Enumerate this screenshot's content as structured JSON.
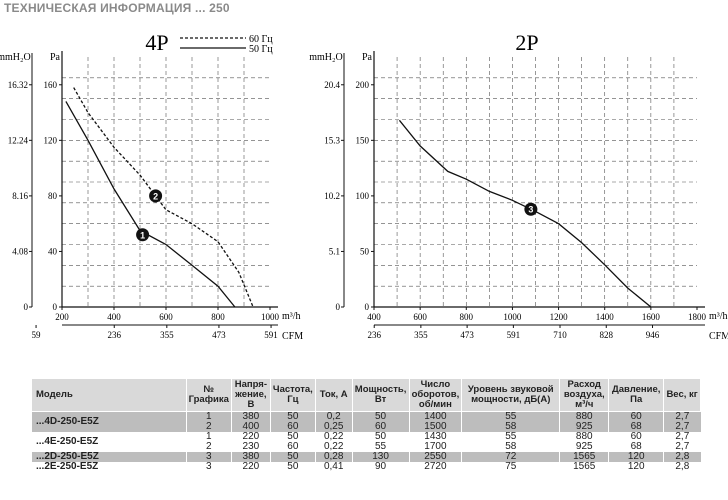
{
  "header": {
    "title": "ТЕХНИЧЕСКАЯ ИНФОРМАЦИЯ  ... 250"
  },
  "chart_data": [
    {
      "type": "line",
      "title": "4P",
      "xlabel": "m³/h",
      "xlabel2": "CFM",
      "ylabel_left": "mmH₂O",
      "ylabel": "Pa",
      "xlim": [
        200,
        1000
      ],
      "ylim": [
        0,
        180
      ],
      "x_ticks": [
        "200",
        "400",
        "600",
        "800",
        "1000"
      ],
      "cfm_ticks": [
        "59",
        "236",
        "355",
        "473",
        "591"
      ],
      "y_ticks": [
        "0",
        "40",
        "80",
        "120",
        "160"
      ],
      "mm_ticks": [
        "0",
        "4.08",
        "8.16",
        "12.24",
        "16.32"
      ],
      "grid": true,
      "legend": "top-center",
      "series": [
        {
          "name": "60 Гц",
          "style": "dashed",
          "marker": "2",
          "marker_x": 560,
          "marker_y": 80,
          "x": [
            245,
            300,
            400,
            500,
            600,
            700,
            800,
            880,
            935
          ],
          "y": [
            158,
            140,
            115,
            95,
            70,
            60,
            47,
            25,
            0
          ]
        },
        {
          "name": "50 Гц",
          "style": "solid",
          "marker": "1",
          "marker_x": 510,
          "marker_y": 52,
          "x": [
            215,
            300,
            400,
            500,
            600,
            700,
            800,
            865
          ],
          "y": [
            148,
            120,
            85,
            55,
            45,
            30,
            15,
            0
          ]
        }
      ]
    },
    {
      "type": "line",
      "title": "2P",
      "xlabel": "m³/h",
      "xlabel2": "CFM",
      "ylabel_left": "mmH₂O",
      "ylabel": "Pa",
      "xlim": [
        400,
        1800
      ],
      "ylim": [
        0,
        225
      ],
      "x_ticks": [
        "400",
        "600",
        "800",
        "1000",
        "1200",
        "1400",
        "1600",
        "1800"
      ],
      "cfm_ticks": [
        "236",
        "355",
        "473",
        "591",
        "710",
        "828",
        "946"
      ],
      "y_ticks": [
        "0",
        "50",
        "100",
        "150",
        "200"
      ],
      "mm_ticks": [
        "0",
        "5.1",
        "10.2",
        "15.3",
        "20.4"
      ],
      "grid": true,
      "series": [
        {
          "name": "",
          "style": "solid",
          "marker": "3",
          "marker_x": 1080,
          "marker_y": 88,
          "x": [
            510,
            600,
            720,
            800,
            900,
            1000,
            1100,
            1200,
            1300,
            1400,
            1500,
            1600
          ],
          "y": [
            168,
            145,
            122,
            115,
            104,
            96,
            86,
            75,
            58,
            38,
            17,
            0
          ]
        }
      ]
    }
  ],
  "table": {
    "headers": [
      "Модель",
      "№ Графика",
      "Напря-жение, В",
      "Частота, Гц",
      "Ток, А",
      "Мощность, Вт",
      "Число оборотов, об/мин",
      "Уровень звуковой мощности, дБ(А)",
      "Расход воздуха, м³/ч",
      "Давление, Па",
      "Вес, кг"
    ],
    "groups": [
      {
        "model": "...4D-250-E5Z",
        "shade": "shade",
        "rows": [
          [
            "1",
            "380",
            "50",
            "0,2",
            "50",
            "1400",
            "55",
            "880",
            "60",
            "2,7"
          ],
          [
            "2",
            "400",
            "60",
            "0,25",
            "60",
            "1500",
            "58",
            "925",
            "68",
            "2,7"
          ]
        ]
      },
      {
        "model": "...4E-250-E5Z",
        "shade": "light",
        "rows": [
          [
            "1",
            "220",
            "50",
            "0,22",
            "50",
            "1430",
            "55",
            "880",
            "60",
            "2,7"
          ],
          [
            "2",
            "230",
            "60",
            "0,22",
            "55",
            "1700",
            "58",
            "925",
            "68",
            "2,7"
          ]
        ]
      },
      {
        "model": "...2D-250-E5Z",
        "shade": "shade",
        "rows": [
          [
            "3",
            "380",
            "50",
            "0,28",
            "130",
            "2550",
            "72",
            "1565",
            "120",
            "2,8"
          ]
        ]
      },
      {
        "model": "...2E-250-E5Z",
        "shade": "light",
        "rows": [
          [
            "3",
            "220",
            "50",
            "0,41",
            "90",
            "2720",
            "75",
            "1565",
            "120",
            "2,8"
          ]
        ]
      }
    ]
  }
}
